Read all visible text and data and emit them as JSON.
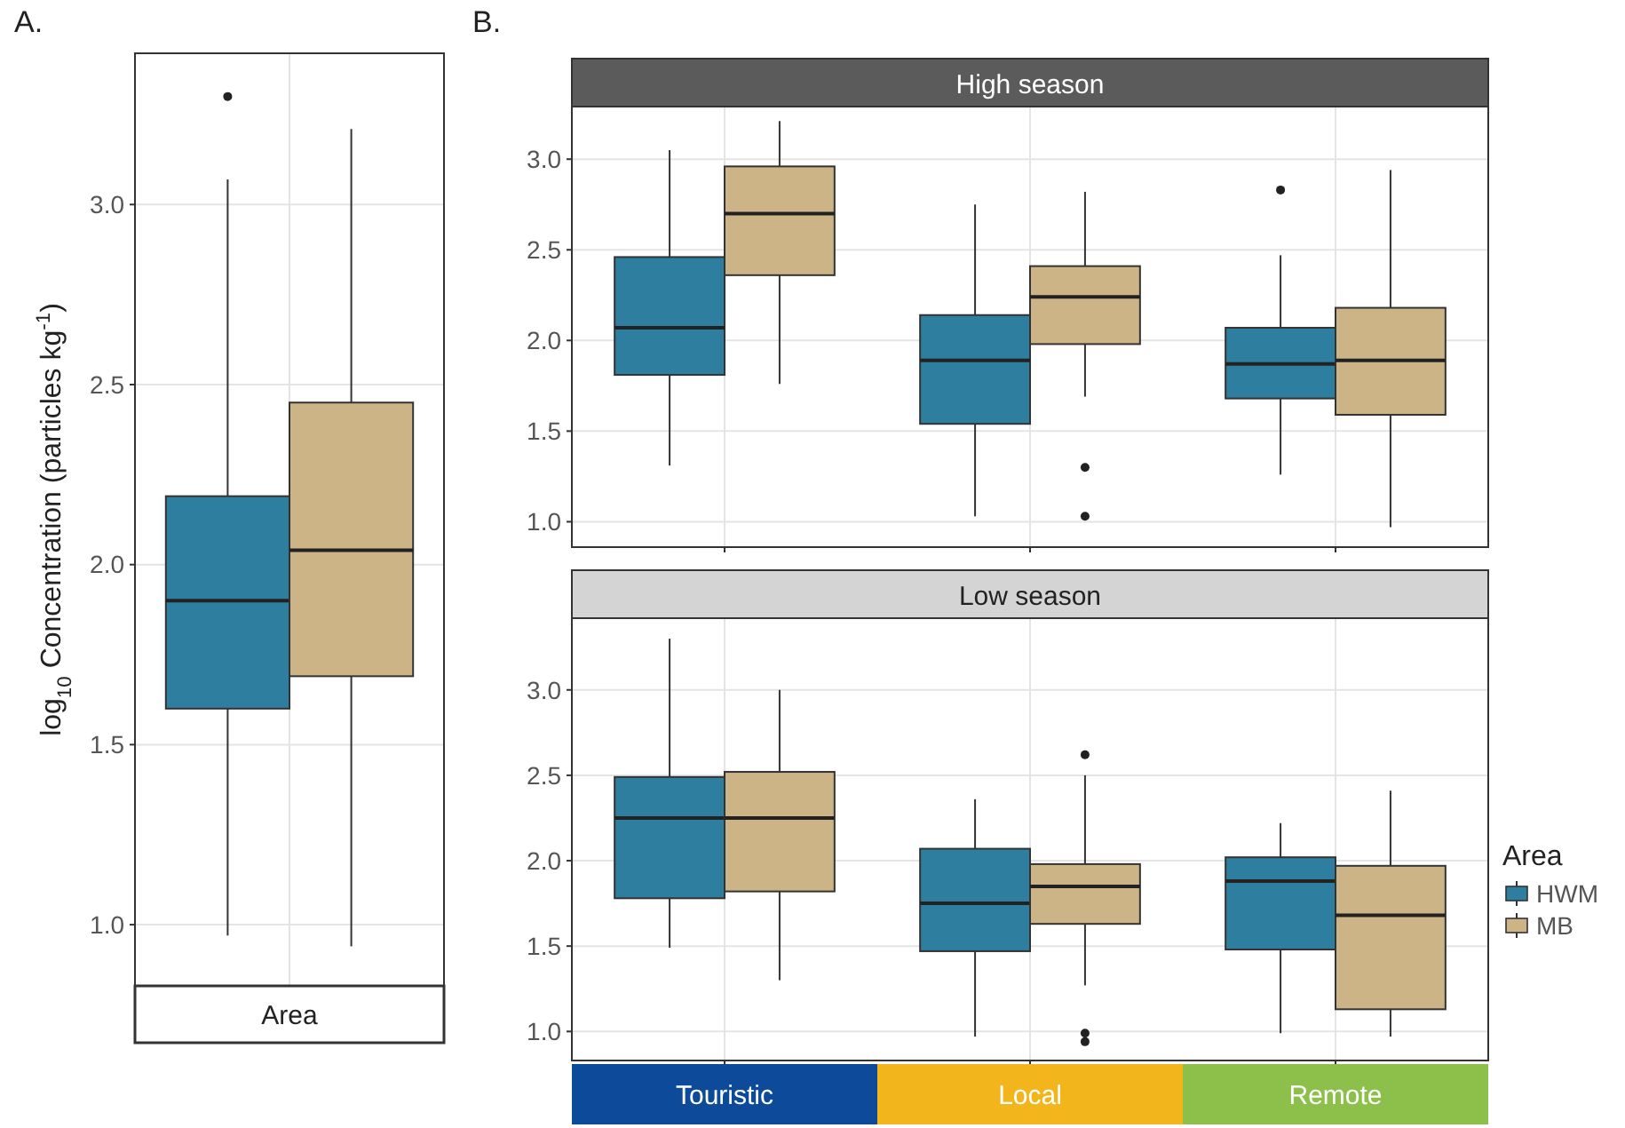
{
  "chart_data": [
    {
      "type": "box",
      "title": "A.",
      "xlabel": "Area",
      "ylabel": "log$_{10}$ Concentration (particles kg$^{-1}$)",
      "categories": [
        null
      ],
      "ylim": [
        0.83,
        3.42
      ],
      "yticks": [
        {
          "value": 1,
          "label": "1.0"
        },
        {
          "value": 1.5,
          "label": "1.5"
        },
        {
          "value": 2,
          "label": "2.0"
        },
        {
          "value": 2.5,
          "label": "2.5"
        },
        {
          "value": 3,
          "label": "3.0"
        }
      ],
      "grid": true,
      "series": [
        {
          "color": "#2e7f9f",
          "boxes": [
            {
              "low": 0.97,
              "q1": 1.6,
              "median": 1.9,
              "q3": 2.19,
              "high": 3.07,
              "outliers": [
                3.3
              ]
            }
          ]
        },
        {
          "color": "#cdb487",
          "boxes": [
            {
              "low": 0.94,
              "q1": 1.69,
              "median": 2.04,
              "q3": 2.45,
              "high": 3.21
            }
          ]
        }
      ]
    },
    {
      "type": "box",
      "title": "High season",
      "annotations": [
        "B."
      ],
      "categories": [
        null,
        null,
        null
      ],
      "ylim": [
        0.86,
        3.29
      ],
      "yticks": [
        {
          "value": 1,
          "label": "1.0"
        },
        {
          "value": 1.5,
          "label": "1.5"
        },
        {
          "value": 2,
          "label": "2.0"
        },
        {
          "value": 2.5,
          "label": "2.5"
        },
        {
          "value": 3,
          "label": "3.0"
        }
      ],
      "grid": true,
      "series": [
        {
          "color": "#2e7f9f",
          "boxes": [
            {
              "low": 1.31,
              "q1": 1.81,
              "median": 2.07,
              "q3": 2.46,
              "high": 3.05
            },
            {
              "low": 1.03,
              "q1": 1.54,
              "median": 1.89,
              "q3": 2.14,
              "high": 2.75
            },
            {
              "low": 1.26,
              "q1": 1.68,
              "median": 1.87,
              "q3": 2.07,
              "high": 2.47,
              "outliers": [
                2.83
              ]
            }
          ]
        },
        {
          "color": "#cdb487",
          "boxes": [
            {
              "low": 1.76,
              "q1": 2.36,
              "median": 2.7,
              "q3": 2.96,
              "high": 3.21
            },
            {
              "low": 1.69,
              "q1": 1.98,
              "median": 2.24,
              "q3": 2.41,
              "high": 2.82,
              "outliers": [
                1.3,
                1.03
              ]
            },
            {
              "low": 0.97,
              "q1": 1.59,
              "median": 1.89,
              "q3": 2.18,
              "high": 2.94
            }
          ]
        }
      ]
    },
    {
      "type": "box",
      "title": "Low season",
      "categories": [
        "Touristic",
        "Local",
        "Remote"
      ],
      "ylim": [
        0.83,
        3.42
      ],
      "yticks": [
        {
          "value": 1,
          "label": "1.0"
        },
        {
          "value": 1.5,
          "label": "1.5"
        },
        {
          "value": 2,
          "label": "2.0"
        },
        {
          "value": 2.5,
          "label": "2.5"
        },
        {
          "value": 3,
          "label": "3.0"
        }
      ],
      "grid": true,
      "legend": "right",
      "legend_title": "Area",
      "series": [
        {
          "name": "HWM",
          "color": "#2e7f9f",
          "boxes": [
            {
              "low": 1.49,
              "q1": 1.78,
              "median": 2.25,
              "q3": 2.49,
              "high": 3.3
            },
            {
              "low": 0.97,
              "q1": 1.47,
              "median": 1.75,
              "q3": 2.07,
              "high": 2.36
            },
            {
              "low": 0.99,
              "q1": 1.48,
              "median": 1.88,
              "q3": 2.02,
              "high": 2.22
            }
          ]
        },
        {
          "name": "MB",
          "color": "#cdb487",
          "boxes": [
            {
              "low": 1.3,
              "q1": 1.82,
              "median": 2.25,
              "q3": 2.52,
              "high": 3.0
            },
            {
              "low": 1.27,
              "q1": 1.63,
              "median": 1.85,
              "q3": 1.98,
              "high": 2.5,
              "outliers": [
                2.62,
                0.99,
                0.94
              ]
            },
            {
              "low": 0.97,
              "q1": 1.13,
              "median": 1.68,
              "q3": 1.97,
              "high": 2.41
            }
          ]
        }
      ]
    }
  ]
}
